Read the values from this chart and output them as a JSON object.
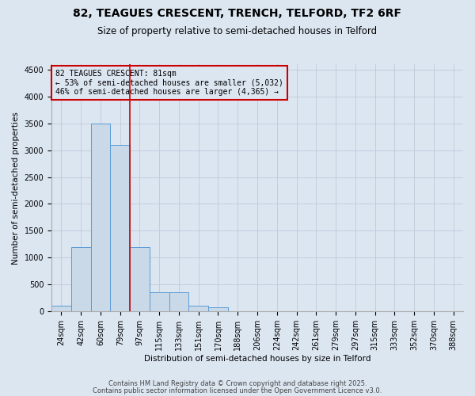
{
  "title1": "82, TEAGUES CRESCENT, TRENCH, TELFORD, TF2 6RF",
  "title2": "Size of property relative to semi-detached houses in Telford",
  "categories": [
    "24sqm",
    "42sqm",
    "60sqm",
    "79sqm",
    "97sqm",
    "115sqm",
    "133sqm",
    "151sqm",
    "170sqm",
    "188sqm",
    "206sqm",
    "224sqm",
    "242sqm",
    "261sqm",
    "279sqm",
    "297sqm",
    "315sqm",
    "333sqm",
    "352sqm",
    "370sqm",
    "388sqm"
  ],
  "values": [
    100,
    1200,
    3500,
    3100,
    1200,
    350,
    350,
    100,
    70,
    5,
    5,
    5,
    0,
    0,
    0,
    0,
    0,
    0,
    0,
    0,
    0
  ],
  "bar_color": "#c9d9e8",
  "bar_edgecolor": "#5b9bd5",
  "grid_color": "#c0c8d8",
  "background_color": "#dce6f1",
  "vline_x_idx": 3,
  "vline_color": "#cc0000",
  "ylabel": "Number of semi-detached properties",
  "xlabel": "Distribution of semi-detached houses by size in Telford",
  "ylim": [
    0,
    4600
  ],
  "yticks": [
    0,
    500,
    1000,
    1500,
    2000,
    2500,
    3000,
    3500,
    4000,
    4500
  ],
  "annotation_title": "82 TEAGUES CRESCENT: 81sqm",
  "annotation_line2": "← 53% of semi-detached houses are smaller (5,032)",
  "annotation_line3": "46% of semi-detached houses are larger (4,365) →",
  "annotation_color": "#cc0000",
  "footer1": "Contains HM Land Registry data © Crown copyright and database right 2025.",
  "footer2": "Contains public sector information licensed under the Open Government Licence v3.0.",
  "title1_fontsize": 10,
  "title2_fontsize": 8.5,
  "xlabel_fontsize": 7.5,
  "ylabel_fontsize": 7.5,
  "tick_fontsize": 7,
  "annotation_fontsize": 7,
  "footer_fontsize": 6
}
